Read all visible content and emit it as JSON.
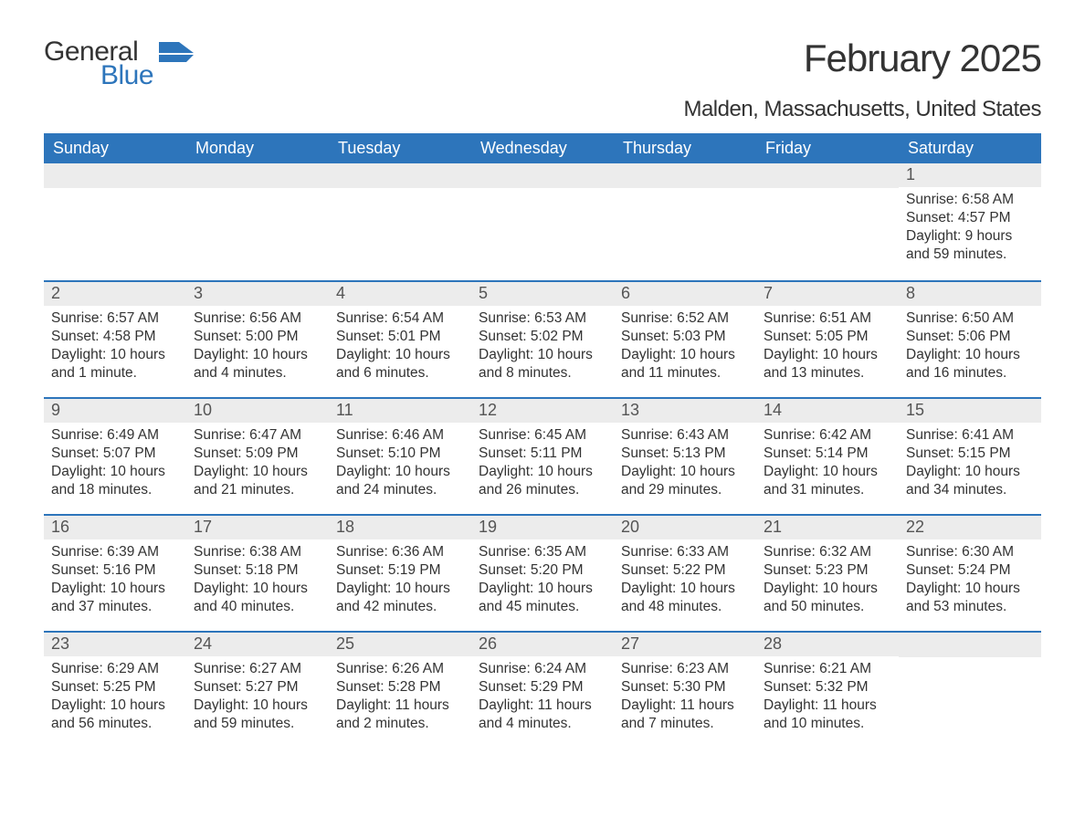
{
  "logo": {
    "word1": "General",
    "word2": "Blue",
    "accent_color": "#2d75bb"
  },
  "title": "February 2025",
  "location": "Malden, Massachusetts, United States",
  "header_bg": "#2d75bb",
  "daynum_bg": "#ececec",
  "week_border": "#2d75bb",
  "weekdays": [
    "Sunday",
    "Monday",
    "Tuesday",
    "Wednesday",
    "Thursday",
    "Friday",
    "Saturday"
  ],
  "labels": {
    "sunrise": "Sunrise:",
    "sunset": "Sunset:",
    "daylight": "Daylight:"
  },
  "weeks": [
    [
      null,
      null,
      null,
      null,
      null,
      null,
      {
        "n": "1",
        "sunrise": "6:58 AM",
        "sunset": "4:57 PM",
        "daylight": "9 hours and 59 minutes."
      }
    ],
    [
      {
        "n": "2",
        "sunrise": "6:57 AM",
        "sunset": "4:58 PM",
        "daylight": "10 hours and 1 minute."
      },
      {
        "n": "3",
        "sunrise": "6:56 AM",
        "sunset": "5:00 PM",
        "daylight": "10 hours and 4 minutes."
      },
      {
        "n": "4",
        "sunrise": "6:54 AM",
        "sunset": "5:01 PM",
        "daylight": "10 hours and 6 minutes."
      },
      {
        "n": "5",
        "sunrise": "6:53 AM",
        "sunset": "5:02 PM",
        "daylight": "10 hours and 8 minutes."
      },
      {
        "n": "6",
        "sunrise": "6:52 AM",
        "sunset": "5:03 PM",
        "daylight": "10 hours and 11 minutes."
      },
      {
        "n": "7",
        "sunrise": "6:51 AM",
        "sunset": "5:05 PM",
        "daylight": "10 hours and 13 minutes."
      },
      {
        "n": "8",
        "sunrise": "6:50 AM",
        "sunset": "5:06 PM",
        "daylight": "10 hours and 16 minutes."
      }
    ],
    [
      {
        "n": "9",
        "sunrise": "6:49 AM",
        "sunset": "5:07 PM",
        "daylight": "10 hours and 18 minutes."
      },
      {
        "n": "10",
        "sunrise": "6:47 AM",
        "sunset": "5:09 PM",
        "daylight": "10 hours and 21 minutes."
      },
      {
        "n": "11",
        "sunrise": "6:46 AM",
        "sunset": "5:10 PM",
        "daylight": "10 hours and 24 minutes."
      },
      {
        "n": "12",
        "sunrise": "6:45 AM",
        "sunset": "5:11 PM",
        "daylight": "10 hours and 26 minutes."
      },
      {
        "n": "13",
        "sunrise": "6:43 AM",
        "sunset": "5:13 PM",
        "daylight": "10 hours and 29 minutes."
      },
      {
        "n": "14",
        "sunrise": "6:42 AM",
        "sunset": "5:14 PM",
        "daylight": "10 hours and 31 minutes."
      },
      {
        "n": "15",
        "sunrise": "6:41 AM",
        "sunset": "5:15 PM",
        "daylight": "10 hours and 34 minutes."
      }
    ],
    [
      {
        "n": "16",
        "sunrise": "6:39 AM",
        "sunset": "5:16 PM",
        "daylight": "10 hours and 37 minutes."
      },
      {
        "n": "17",
        "sunrise": "6:38 AM",
        "sunset": "5:18 PM",
        "daylight": "10 hours and 40 minutes."
      },
      {
        "n": "18",
        "sunrise": "6:36 AM",
        "sunset": "5:19 PM",
        "daylight": "10 hours and 42 minutes."
      },
      {
        "n": "19",
        "sunrise": "6:35 AM",
        "sunset": "5:20 PM",
        "daylight": "10 hours and 45 minutes."
      },
      {
        "n": "20",
        "sunrise": "6:33 AM",
        "sunset": "5:22 PM",
        "daylight": "10 hours and 48 minutes."
      },
      {
        "n": "21",
        "sunrise": "6:32 AM",
        "sunset": "5:23 PM",
        "daylight": "10 hours and 50 minutes."
      },
      {
        "n": "22",
        "sunrise": "6:30 AM",
        "sunset": "5:24 PM",
        "daylight": "10 hours and 53 minutes."
      }
    ],
    [
      {
        "n": "23",
        "sunrise": "6:29 AM",
        "sunset": "5:25 PM",
        "daylight": "10 hours and 56 minutes."
      },
      {
        "n": "24",
        "sunrise": "6:27 AM",
        "sunset": "5:27 PM",
        "daylight": "10 hours and 59 minutes."
      },
      {
        "n": "25",
        "sunrise": "6:26 AM",
        "sunset": "5:28 PM",
        "daylight": "11 hours and 2 minutes."
      },
      {
        "n": "26",
        "sunrise": "6:24 AM",
        "sunset": "5:29 PM",
        "daylight": "11 hours and 4 minutes."
      },
      {
        "n": "27",
        "sunrise": "6:23 AM",
        "sunset": "5:30 PM",
        "daylight": "11 hours and 7 minutes."
      },
      {
        "n": "28",
        "sunrise": "6:21 AM",
        "sunset": "5:32 PM",
        "daylight": "11 hours and 10 minutes."
      },
      null
    ]
  ]
}
